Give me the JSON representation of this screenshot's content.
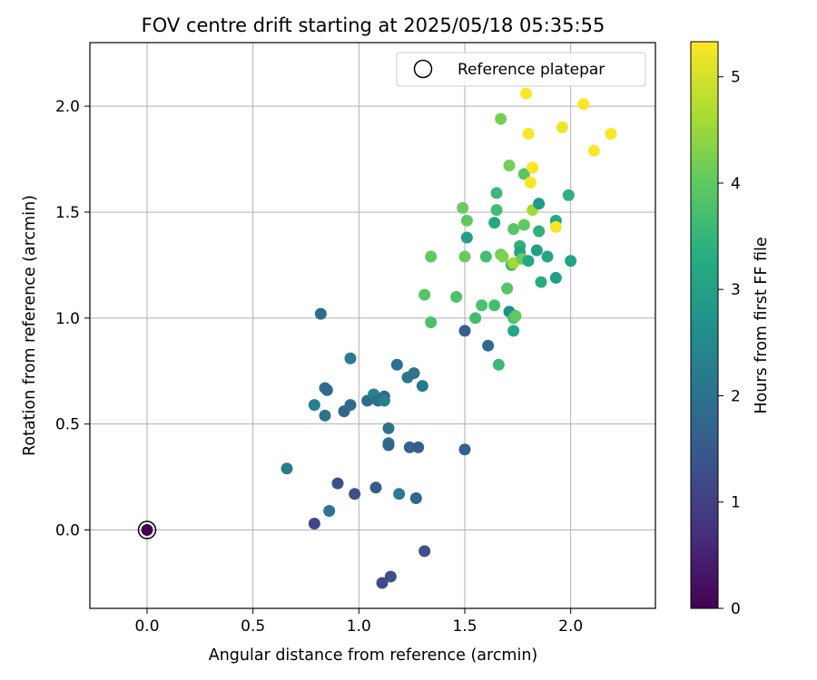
{
  "chart_data": {
    "type": "scatter",
    "title": "FOV centre drift starting at 2025/05/18 05:35:55",
    "xlabel": "Angular distance from reference (arcmin)",
    "ylabel": "Rotation from reference (arcmin)",
    "xlim": [
      -0.27,
      2.4
    ],
    "ylim": [
      -0.37,
      2.3
    ],
    "xticks": [
      0.0,
      0.5,
      1.0,
      1.5,
      2.0
    ],
    "yticks": [
      0.0,
      0.5,
      1.0,
      1.5,
      2.0
    ],
    "xtick_labels": [
      "0.0",
      "0.5",
      "1.0",
      "1.5",
      "2.0"
    ],
    "ytick_labels": [
      "0.0",
      "0.5",
      "1.0",
      "1.5",
      "2.0"
    ],
    "grid": true,
    "legend": {
      "position": "top-right",
      "entries": [
        "Reference platepar"
      ]
    },
    "colormap": "viridis",
    "colorbar": {
      "label": "Hours from first FF file",
      "range": [
        0,
        5.33
      ],
      "ticks": [
        0,
        1,
        2,
        3,
        4,
        5
      ],
      "tick_labels": [
        "0",
        "1",
        "2",
        "3",
        "4",
        "5"
      ]
    },
    "reference_point": {
      "x": 0.0,
      "y": 0.0,
      "c": 0.0
    },
    "points": [
      {
        "x": 0.79,
        "y": 0.03,
        "c": 1.1
      },
      {
        "x": 0.86,
        "y": 0.09,
        "c": 2.1
      },
      {
        "x": 0.9,
        "y": 0.22,
        "c": 1.3
      },
      {
        "x": 0.98,
        "y": 0.17,
        "c": 1.3
      },
      {
        "x": 1.08,
        "y": 0.2,
        "c": 1.5
      },
      {
        "x": 1.19,
        "y": 0.17,
        "c": 2.2
      },
      {
        "x": 1.27,
        "y": 0.15,
        "c": 1.8
      },
      {
        "x": 1.11,
        "y": -0.25,
        "c": 1.2
      },
      {
        "x": 1.15,
        "y": -0.22,
        "c": 1.3
      },
      {
        "x": 1.31,
        "y": -0.1,
        "c": 1.3
      },
      {
        "x": 0.66,
        "y": 0.29,
        "c": 2.2
      },
      {
        "x": 0.79,
        "y": 0.59,
        "c": 2.3
      },
      {
        "x": 0.84,
        "y": 0.54,
        "c": 2.0
      },
      {
        "x": 0.84,
        "y": 0.67,
        "c": 2.0
      },
      {
        "x": 0.85,
        "y": 0.66,
        "c": 1.8
      },
      {
        "x": 0.93,
        "y": 0.56,
        "c": 1.7
      },
      {
        "x": 0.96,
        "y": 0.59,
        "c": 1.8
      },
      {
        "x": 0.96,
        "y": 0.81,
        "c": 2.2
      },
      {
        "x": 1.04,
        "y": 0.61,
        "c": 1.8
      },
      {
        "x": 1.07,
        "y": 0.64,
        "c": 2.3
      },
      {
        "x": 1.09,
        "y": 0.61,
        "c": 1.9
      },
      {
        "x": 1.12,
        "y": 0.63,
        "c": 1.9
      },
      {
        "x": 1.12,
        "y": 0.61,
        "c": 2.3
      },
      {
        "x": 1.14,
        "y": 0.48,
        "c": 2.0
      },
      {
        "x": 1.14,
        "y": 0.41,
        "c": 2.2
      },
      {
        "x": 1.14,
        "y": 0.4,
        "c": 1.7
      },
      {
        "x": 1.18,
        "y": 0.78,
        "c": 2.0
      },
      {
        "x": 1.23,
        "y": 0.72,
        "c": 2.1
      },
      {
        "x": 1.26,
        "y": 0.74,
        "c": 2.0
      },
      {
        "x": 1.3,
        "y": 0.68,
        "c": 2.2
      },
      {
        "x": 1.24,
        "y": 0.39,
        "c": 1.7
      },
      {
        "x": 1.28,
        "y": 0.39,
        "c": 1.6
      },
      {
        "x": 1.5,
        "y": 0.38,
        "c": 1.6
      },
      {
        "x": 0.82,
        "y": 1.02,
        "c": 1.9
      },
      {
        "x": 1.5,
        "y": 0.94,
        "c": 1.6
      },
      {
        "x": 1.61,
        "y": 0.87,
        "c": 1.8
      },
      {
        "x": 1.66,
        "y": 0.78,
        "c": 3.6
      },
      {
        "x": 1.31,
        "y": 1.11,
        "c": 3.9
      },
      {
        "x": 1.34,
        "y": 0.98,
        "c": 3.8
      },
      {
        "x": 1.46,
        "y": 1.1,
        "c": 3.8
      },
      {
        "x": 1.34,
        "y": 1.29,
        "c": 4.0
      },
      {
        "x": 1.5,
        "y": 1.29,
        "c": 4.1
      },
      {
        "x": 1.51,
        "y": 1.38,
        "c": 3.0
      },
      {
        "x": 1.49,
        "y": 1.52,
        "c": 4.1
      },
      {
        "x": 1.51,
        "y": 1.46,
        "c": 4.0
      },
      {
        "x": 1.55,
        "y": 1.0,
        "c": 3.7
      },
      {
        "x": 1.58,
        "y": 1.06,
        "c": 3.8
      },
      {
        "x": 1.6,
        "y": 1.29,
        "c": 3.7
      },
      {
        "x": 1.64,
        "y": 1.06,
        "c": 3.7
      },
      {
        "x": 1.64,
        "y": 1.45,
        "c": 3.2
      },
      {
        "x": 1.65,
        "y": 1.51,
        "c": 3.7
      },
      {
        "x": 1.65,
        "y": 1.59,
        "c": 3.6
      },
      {
        "x": 1.67,
        "y": 1.3,
        "c": 4.1
      },
      {
        "x": 1.68,
        "y": 1.29,
        "c": 4.3
      },
      {
        "x": 1.67,
        "y": 1.94,
        "c": 4.2
      },
      {
        "x": 1.7,
        "y": 1.14,
        "c": 3.9
      },
      {
        "x": 1.71,
        "y": 1.03,
        "c": 2.6
      },
      {
        "x": 1.72,
        "y": 1.25,
        "c": 3.6
      },
      {
        "x": 1.71,
        "y": 1.72,
        "c": 4.2
      },
      {
        "x": 1.73,
        "y": 1.0,
        "c": 3.8
      },
      {
        "x": 1.73,
        "y": 0.94,
        "c": 3.2
      },
      {
        "x": 1.73,
        "y": 1.26,
        "c": 4.6
      },
      {
        "x": 1.73,
        "y": 1.42,
        "c": 3.9
      },
      {
        "x": 1.74,
        "y": 1.01,
        "c": 4.0
      },
      {
        "x": 1.76,
        "y": 1.34,
        "c": 3.4
      },
      {
        "x": 1.76,
        "y": 1.31,
        "c": 3.1
      },
      {
        "x": 1.77,
        "y": 1.28,
        "c": 4.1
      },
      {
        "x": 1.78,
        "y": 1.44,
        "c": 4.0
      },
      {
        "x": 1.78,
        "y": 1.68,
        "c": 3.9
      },
      {
        "x": 1.79,
        "y": 2.06,
        "c": 5.3
      },
      {
        "x": 1.8,
        "y": 1.27,
        "c": 3.2
      },
      {
        "x": 1.8,
        "y": 1.87,
        "c": 5.3
      },
      {
        "x": 1.81,
        "y": 1.64,
        "c": 5.3
      },
      {
        "x": 1.82,
        "y": 1.51,
        "c": 4.6
      },
      {
        "x": 1.82,
        "y": 1.71,
        "c": 5.3
      },
      {
        "x": 1.84,
        "y": 1.32,
        "c": 3.0
      },
      {
        "x": 1.85,
        "y": 1.54,
        "c": 2.9
      },
      {
        "x": 1.85,
        "y": 1.41,
        "c": 3.4
      },
      {
        "x": 1.86,
        "y": 1.17,
        "c": 3.3
      },
      {
        "x": 1.89,
        "y": 1.29,
        "c": 3.1
      },
      {
        "x": 1.93,
        "y": 1.19,
        "c": 3.0
      },
      {
        "x": 1.93,
        "y": 1.46,
        "c": 3.2
      },
      {
        "x": 1.93,
        "y": 1.43,
        "c": 5.3
      },
      {
        "x": 1.96,
        "y": 1.9,
        "c": 5.2
      },
      {
        "x": 1.99,
        "y": 1.58,
        "c": 3.4
      },
      {
        "x": 2.0,
        "y": 1.27,
        "c": 3.1
      },
      {
        "x": 2.06,
        "y": 2.01,
        "c": 5.3
      },
      {
        "x": 2.11,
        "y": 1.79,
        "c": 5.3
      },
      {
        "x": 2.19,
        "y": 1.87,
        "c": 5.3
      }
    ]
  }
}
